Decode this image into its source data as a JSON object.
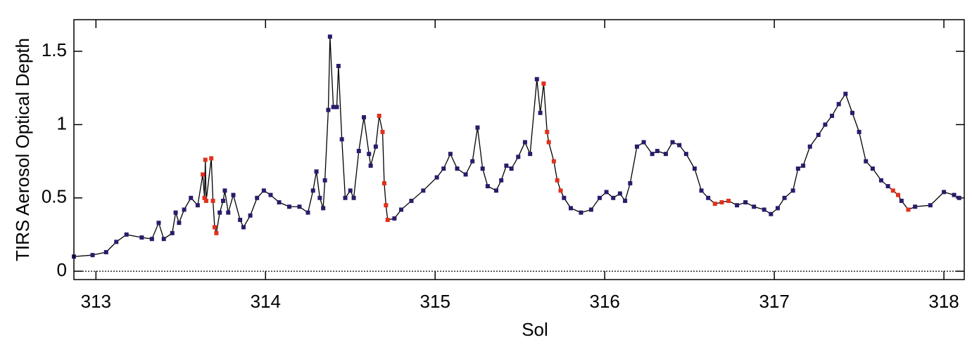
{
  "chart_data": {
    "type": "line",
    "xlabel": "Sol",
    "ylabel": "TIRS Aerosol Optical Depth",
    "xlim": [
      312.87,
      318.12
    ],
    "ylim": [
      -0.057,
      1.716
    ],
    "xticks": [
      313,
      314,
      315,
      316,
      317,
      318
    ],
    "yticks": [
      0,
      0.5,
      1,
      1.5
    ],
    "reference_line": 0,
    "series": [
      {
        "color": "#000000",
        "x": [
          312.87,
          312.98,
          313.06,
          313.12,
          313.18,
          313.27,
          313.33,
          313.37,
          313.4,
          313.45,
          313.47,
          313.49,
          313.52,
          313.56,
          313.6,
          313.63,
          313.64,
          313.645,
          313.65,
          313.68,
          313.69,
          313.7,
          313.71,
          313.73,
          313.75,
          313.76,
          313.78,
          313.81,
          313.85,
          313.87,
          313.91,
          313.95,
          313.99,
          314.03,
          314.08,
          314.14,
          314.2,
          314.25,
          314.28,
          314.3,
          314.32,
          314.34,
          314.35,
          314.37,
          314.38,
          314.4,
          314.42,
          314.43,
          314.45,
          314.47,
          314.5,
          314.52,
          314.55,
          314.58,
          314.61,
          314.62,
          314.65,
          314.67,
          314.69,
          314.7,
          314.71,
          314.72,
          314.76,
          314.8,
          314.86,
          314.93,
          315.01,
          315.05,
          315.09,
          315.13,
          315.18,
          315.22,
          315.25,
          315.28,
          315.31,
          315.36,
          315.39,
          315.42,
          315.45,
          315.49,
          315.53,
          315.56,
          315.6,
          315.62,
          315.64,
          315.66,
          315.67,
          315.7,
          315.72,
          315.74,
          315.76,
          315.8,
          315.86,
          315.92,
          315.97,
          316.01,
          316.05,
          316.09,
          316.12,
          316.15,
          316.19,
          316.23,
          316.28,
          316.31,
          316.36,
          316.4,
          316.44,
          316.48,
          316.53,
          316.57,
          316.61,
          316.65,
          316.69,
          316.73,
          316.78,
          316.83,
          316.88,
          316.94,
          316.98,
          317.02,
          317.06,
          317.11,
          317.14,
          317.17,
          317.21,
          317.26,
          317.3,
          317.34,
          317.38,
          317.42,
          317.46,
          317.5,
          317.54,
          317.58,
          317.63,
          317.67,
          317.7,
          317.73,
          317.75,
          317.79,
          317.83,
          317.92,
          318.0,
          318.06,
          318.09
        ],
        "values": [
          0.1,
          0.11,
          0.13,
          0.2,
          0.25,
          0.23,
          0.22,
          0.33,
          0.22,
          0.26,
          0.4,
          0.33,
          0.42,
          0.5,
          0.45,
          0.66,
          0.5,
          0.76,
          0.48,
          0.77,
          0.48,
          0.3,
          0.26,
          0.4,
          0.48,
          0.55,
          0.4,
          0.52,
          0.35,
          0.3,
          0.38,
          0.5,
          0.55,
          0.52,
          0.47,
          0.44,
          0.44,
          0.4,
          0.55,
          0.68,
          0.5,
          0.43,
          0.62,
          1.1,
          1.6,
          1.12,
          1.12,
          1.4,
          0.9,
          0.5,
          0.55,
          0.5,
          0.82,
          1.05,
          0.8,
          0.72,
          0.85,
          1.06,
          0.95,
          0.6,
          0.45,
          0.35,
          0.36,
          0.42,
          0.48,
          0.55,
          0.64,
          0.7,
          0.8,
          0.7,
          0.66,
          0.75,
          0.98,
          0.7,
          0.58,
          0.55,
          0.62,
          0.72,
          0.7,
          0.78,
          0.88,
          0.8,
          1.31,
          1.08,
          1.28,
          0.95,
          0.88,
          0.75,
          0.62,
          0.55,
          0.5,
          0.43,
          0.4,
          0.42,
          0.5,
          0.54,
          0.5,
          0.53,
          0.48,
          0.6,
          0.85,
          0.88,
          0.8,
          0.82,
          0.8,
          0.88,
          0.86,
          0.8,
          0.7,
          0.55,
          0.5,
          0.46,
          0.47,
          0.48,
          0.45,
          0.47,
          0.44,
          0.42,
          0.39,
          0.43,
          0.5,
          0.55,
          0.7,
          0.72,
          0.85,
          0.93,
          1.0,
          1.06,
          1.14,
          1.21,
          1.08,
          0.95,
          0.75,
          0.7,
          0.62,
          0.58,
          0.55,
          0.52,
          0.48,
          0.42,
          0.44,
          0.45,
          0.54,
          0.52,
          0.5
        ],
        "marker_colors": [
          "#2b1b6b",
          "#2b1b6b",
          "#2b1b6b",
          "#2b1b6b",
          "#2b1b6b",
          "#2b1b6b",
          "#2b1b6b",
          "#2b1b6b",
          "#2b1b6b",
          "#2b1b6b",
          "#2b1b6b",
          "#2b1b6b",
          "#2b1b6b",
          "#2b1b6b",
          "#2b1b6b",
          "#e2301c",
          "#e2301c",
          "#e2301c",
          "#e2301c",
          "#e2301c",
          "#e2301c",
          "#e2301c",
          "#e2301c",
          "#2b1b6b",
          "#2b1b6b",
          "#2b1b6b",
          "#2b1b6b",
          "#2b1b6b",
          "#2b1b6b",
          "#2b1b6b",
          "#2b1b6b",
          "#2b1b6b",
          "#2b1b6b",
          "#2b1b6b",
          "#2b1b6b",
          "#2b1b6b",
          "#2b1b6b",
          "#2b1b6b",
          "#2b1b6b",
          "#2b1b6b",
          "#2b1b6b",
          "#2b1b6b",
          "#2b1b6b",
          "#2b1b6b",
          "#2b1b6b",
          "#2b1b6b",
          "#2b1b6b",
          "#2b1b6b",
          "#2b1b6b",
          "#2b1b6b",
          "#2b1b6b",
          "#2b1b6b",
          "#2b1b6b",
          "#2b1b6b",
          "#2b1b6b",
          "#2b1b6b",
          "#2b1b6b",
          "#e2301c",
          "#e2301c",
          "#e2301c",
          "#e2301c",
          "#e2301c",
          "#2b1b6b",
          "#2b1b6b",
          "#2b1b6b",
          "#2b1b6b",
          "#2b1b6b",
          "#2b1b6b",
          "#2b1b6b",
          "#2b1b6b",
          "#2b1b6b",
          "#2b1b6b",
          "#2b1b6b",
          "#2b1b6b",
          "#2b1b6b",
          "#2b1b6b",
          "#2b1b6b",
          "#2b1b6b",
          "#2b1b6b",
          "#2b1b6b",
          "#2b1b6b",
          "#2b1b6b",
          "#2b1b6b",
          "#2b1b6b",
          "#e2301c",
          "#e2301c",
          "#e2301c",
          "#e2301c",
          "#e2301c",
          "#e2301c",
          "#2b1b6b",
          "#2b1b6b",
          "#2b1b6b",
          "#2b1b6b",
          "#2b1b6b",
          "#2b1b6b",
          "#2b1b6b",
          "#2b1b6b",
          "#2b1b6b",
          "#2b1b6b",
          "#2b1b6b",
          "#2b1b6b",
          "#2b1b6b",
          "#2b1b6b",
          "#2b1b6b",
          "#2b1b6b",
          "#2b1b6b",
          "#2b1b6b",
          "#2b1b6b",
          "#2b1b6b",
          "#2b1b6b",
          "#e2301c",
          "#e2301c",
          "#e2301c",
          "#2b1b6b",
          "#2b1b6b",
          "#2b1b6b",
          "#2b1b6b",
          "#2b1b6b",
          "#2b1b6b",
          "#2b1b6b",
          "#2b1b6b",
          "#2b1b6b",
          "#2b1b6b",
          "#2b1b6b",
          "#2b1b6b",
          "#2b1b6b",
          "#2b1b6b",
          "#2b1b6b",
          "#2b1b6b",
          "#2b1b6b",
          "#2b1b6b",
          "#2b1b6b",
          "#2b1b6b",
          "#2b1b6b",
          "#2b1b6b",
          "#e2301c",
          "#e2301c",
          "#2b1b6b",
          "#e2301c",
          "#2b1b6b",
          "#2b1b6b",
          "#2b1b6b",
          "#2b1b6b",
          "#2b1b6b",
          "#2b1b6b"
        ]
      }
    ]
  }
}
